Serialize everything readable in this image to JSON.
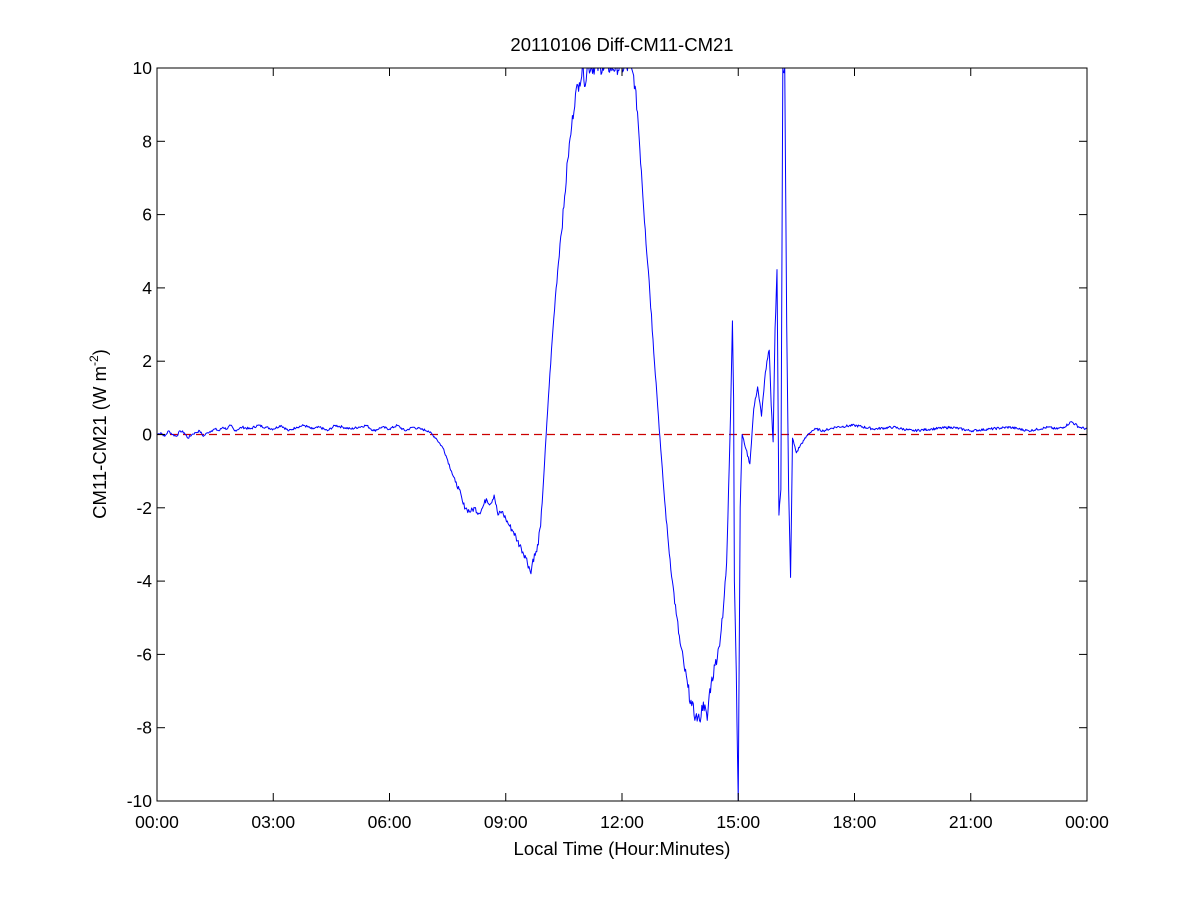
{
  "chart_data": {
    "type": "line",
    "title": "20110106 Diff-CM11-CM21",
    "xlabel": "Local Time (Hour:Minutes)",
    "ylabel": {
      "main": "CM11-CM21 (W m",
      "superscript": "-2",
      "close": ")"
    },
    "xlim": [
      0,
      24
    ],
    "ylim": [
      -10,
      10
    ],
    "xticks": [
      {
        "value": 0,
        "label": "00:00"
      },
      {
        "value": 3,
        "label": "03:00"
      },
      {
        "value": 6,
        "label": "06:00"
      },
      {
        "value": 9,
        "label": "09:00"
      },
      {
        "value": 12,
        "label": "12:00"
      },
      {
        "value": 15,
        "label": "15:00"
      },
      {
        "value": 18,
        "label": "18:00"
      },
      {
        "value": 21,
        "label": "21:00"
      },
      {
        "value": 24,
        "label": "00:00"
      }
    ],
    "yticks": [
      {
        "value": 10,
        "label": "10"
      },
      {
        "value": 8,
        "label": "8"
      },
      {
        "value": 6,
        "label": "6"
      },
      {
        "value": 4,
        "label": "4"
      },
      {
        "value": 2,
        "label": "2"
      },
      {
        "value": 0,
        "label": "0"
      },
      {
        "value": -2,
        "label": "-2"
      },
      {
        "value": -4,
        "label": "-4"
      },
      {
        "value": -6,
        "label": "-6"
      },
      {
        "value": -8,
        "label": "-8"
      },
      {
        "value": -10,
        "label": "-10"
      }
    ],
    "reference_line": {
      "y": 0,
      "color": "#cc0000",
      "style": "dashed"
    },
    "grid": false,
    "series": [
      {
        "color": "#0000ff",
        "x": [
          0,
          0.1,
          0.2,
          0.3,
          0.4,
          0.5,
          0.6,
          0.7,
          0.8,
          0.9,
          1.0,
          1.1,
          1.2,
          1.3,
          1.4,
          1.5,
          1.6,
          1.7,
          1.8,
          1.9,
          2.0,
          2.2,
          2.4,
          2.6,
          2.8,
          3.0,
          3.2,
          3.4,
          3.6,
          3.8,
          4.0,
          4.2,
          4.4,
          4.6,
          4.8,
          5.0,
          5.2,
          5.4,
          5.6,
          5.8,
          6.0,
          6.2,
          6.4,
          6.6,
          6.8,
          7.0,
          7.2,
          7.4,
          7.5,
          7.6,
          7.7,
          7.8,
          7.9,
          8.0,
          8.1,
          8.2,
          8.3,
          8.4,
          8.5,
          8.6,
          8.7,
          8.8,
          8.9,
          9.0,
          9.1,
          9.2,
          9.3,
          9.4,
          9.5,
          9.6,
          9.65,
          9.7,
          9.8,
          9.9,
          10.0,
          10.1,
          10.2,
          10.3,
          10.4,
          10.5,
          10.6,
          10.7,
          10.8,
          10.9,
          11.0,
          11.05,
          11.1,
          11.2,
          11.5,
          12.0,
          12.2,
          12.3,
          12.4,
          12.5,
          12.6,
          12.7,
          12.8,
          12.9,
          13.0,
          13.1,
          13.2,
          13.3,
          13.4,
          13.5,
          13.6,
          13.7,
          13.8,
          13.9,
          14.0,
          14.1,
          14.2,
          14.25,
          14.3,
          14.4,
          14.5,
          14.6,
          14.7,
          14.75,
          14.8,
          14.85,
          14.88,
          14.9,
          14.95,
          15.0,
          15.05,
          15.1,
          15.2,
          15.3,
          15.4,
          15.5,
          15.6,
          15.7,
          15.8,
          15.85,
          15.9,
          15.95,
          16.0,
          16.05,
          16.1,
          16.15,
          16.2,
          16.25,
          16.3,
          16.35,
          16.4,
          16.5,
          16.6,
          16.7,
          16.8,
          16.9,
          17.0,
          17.2,
          17.5,
          18.0,
          18.5,
          19.0,
          19.5,
          20.0,
          20.5,
          21.0,
          21.5,
          22.0,
          22.5,
          23.0,
          23.2,
          23.4,
          23.6,
          23.8,
          24.0
        ],
        "y": [
          0.0,
          0.05,
          -0.05,
          0.1,
          0.0,
          -0.05,
          0.1,
          0.05,
          -0.1,
          0.0,
          0.05,
          0.1,
          -0.05,
          0.05,
          0.1,
          0.15,
          0.1,
          0.2,
          0.15,
          0.25,
          0.1,
          0.2,
          0.15,
          0.25,
          0.2,
          0.15,
          0.25,
          0.1,
          0.2,
          0.25,
          0.15,
          0.2,
          0.1,
          0.25,
          0.2,
          0.15,
          0.2,
          0.25,
          0.1,
          0.2,
          0.15,
          0.25,
          0.1,
          0.2,
          0.15,
          0.1,
          -0.1,
          -0.4,
          -0.7,
          -1.0,
          -1.3,
          -1.5,
          -1.9,
          -2.05,
          -2.1,
          -2.0,
          -2.15,
          -2.0,
          -1.75,
          -1.9,
          -1.65,
          -2.2,
          -2.1,
          -2.3,
          -2.5,
          -2.65,
          -2.9,
          -3.1,
          -3.3,
          -3.6,
          -3.8,
          -3.4,
          -3.2,
          -2.5,
          -0.8,
          1.0,
          2.6,
          4.0,
          5.2,
          6.2,
          7.5,
          8.4,
          9.3,
          9.6,
          10.0,
          9.5,
          10.0,
          10.0,
          10.0,
          10.0,
          10.0,
          9.8,
          8.8,
          7.2,
          5.6,
          4.2,
          2.6,
          1.1,
          -0.4,
          -1.8,
          -3.0,
          -4.0,
          -4.9,
          -5.7,
          -6.3,
          -6.9,
          -7.4,
          -7.7,
          -7.8,
          -7.3,
          -7.8,
          -7.1,
          -6.8,
          -6.3,
          -5.8,
          -5.0,
          -3.5,
          -1.5,
          0.5,
          3.1,
          1.0,
          -4.0,
          -6.5,
          -10.0,
          -2.0,
          0.0,
          -0.4,
          -0.8,
          0.7,
          1.3,
          0.5,
          1.7,
          2.3,
          0.8,
          -0.2,
          2.9,
          4.5,
          -2.2,
          -1.5,
          10.0,
          10.0,
          3.0,
          -1.5,
          -3.9,
          -0.1,
          -0.5,
          -0.3,
          -0.15,
          0.0,
          0.1,
          0.15,
          0.1,
          0.2,
          0.25,
          0.15,
          0.2,
          0.1,
          0.15,
          0.2,
          0.1,
          0.15,
          0.2,
          0.1,
          0.2,
          0.15,
          0.2,
          0.35,
          0.2,
          0.15
        ]
      }
    ]
  }
}
